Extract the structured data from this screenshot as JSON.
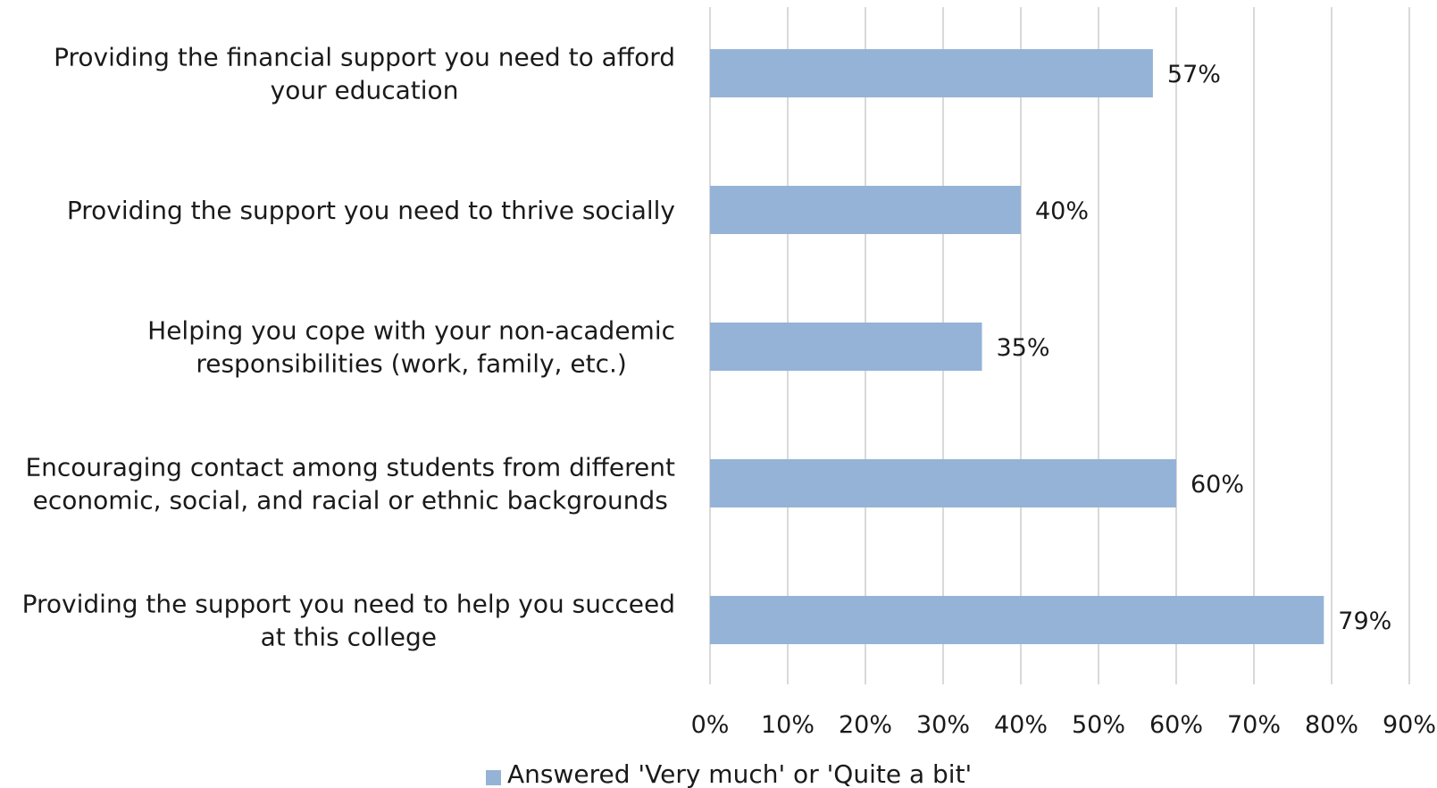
{
  "chart_data": {
    "type": "bar",
    "orientation": "horizontal",
    "categories": [
      [
        "Providing the financial support you need to afford",
        "your education"
      ],
      [
        "Providing the support you need to thrive socially"
      ],
      [
        "Helping you cope with your non-academic",
        "responsibilities (work, family, etc.)"
      ],
      [
        "Encouraging contact among students from different",
        "economic, social, and racial or ethnic backgrounds"
      ],
      [
        "Providing the support you need to help you succeed",
        "at this college"
      ]
    ],
    "series": [
      {
        "name": "Answered 'Very much' or 'Quite a bit'",
        "values": [
          57,
          40,
          35,
          60,
          79
        ],
        "labels": [
          "57%",
          "40%",
          "35%",
          "60%",
          "79%"
        ],
        "color": "#95b3d7"
      }
    ],
    "xlim": [
      0,
      90
    ],
    "xticks": [
      0,
      10,
      20,
      30,
      40,
      50,
      60,
      70,
      80,
      90
    ],
    "xtick_labels": [
      "0%",
      "10%",
      "20%",
      "30%",
      "40%",
      "50%",
      "60%",
      "70%",
      "80%",
      "90%"
    ],
    "grid": "vertical",
    "legend_position": "bottom"
  }
}
